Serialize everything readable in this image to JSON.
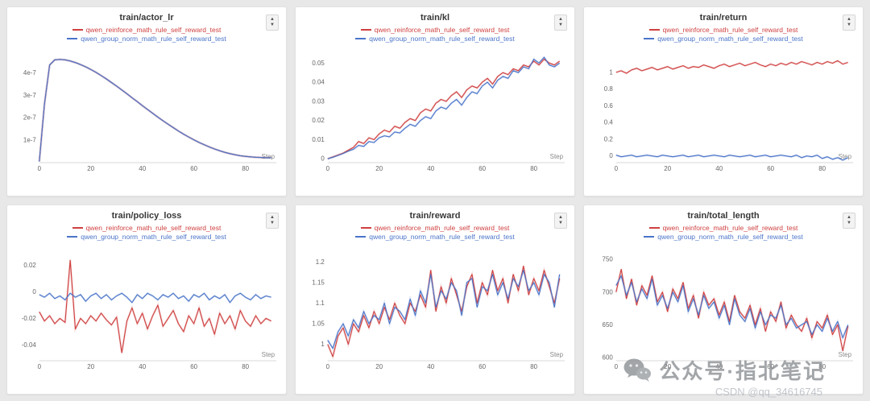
{
  "legend": {
    "series1": "qwen_reinforce_math_rule_self_reward_test",
    "series2": "qwen_group_norm_math_rule_self_reward_test",
    "color1": "#cf3f3f",
    "color2": "#4a74c9"
  },
  "icons": {
    "chevron_up": "▲",
    "chevron_down": "▼"
  },
  "watermark": {
    "wechat_text": "公众号·指北笔记",
    "csdn_text": "CSDN @qq_34616745"
  },
  "chart_data": [
    {
      "type": "line",
      "title": "train/actor_lr",
      "xlabel": "Step",
      "y_unit": "1e-7",
      "xlim": [
        0,
        92
      ],
      "xticks": [
        0,
        20,
        40,
        60,
        80
      ],
      "ylim": [
        0,
        4.95
      ],
      "ytick_values": [
        1,
        2,
        3,
        4
      ],
      "ytick_labels": [
        "1e-7",
        "2e-7",
        "3e-7",
        "4e-7"
      ],
      "x": [
        0,
        2,
        4,
        6,
        8,
        10,
        12,
        14,
        16,
        18,
        20,
        22,
        24,
        26,
        28,
        30,
        32,
        34,
        36,
        38,
        40,
        42,
        44,
        46,
        48,
        50,
        52,
        54,
        56,
        58,
        60,
        62,
        64,
        66,
        68,
        70,
        72,
        74,
        76,
        78,
        80,
        82,
        84,
        86,
        88,
        90
      ],
      "series": [
        {
          "name": "qwen_reinforce_math_rule_self_reward_test",
          "color": "#cf3f3f",
          "values": [
            0.05,
            2.6,
            4.35,
            4.58,
            4.6,
            4.58,
            4.53,
            4.46,
            4.37,
            4.27,
            4.15,
            4.02,
            3.88,
            3.73,
            3.57,
            3.41,
            3.24,
            3.07,
            2.89,
            2.72,
            2.54,
            2.37,
            2.2,
            2.03,
            1.87,
            1.71,
            1.56,
            1.41,
            1.27,
            1.14,
            1.02,
            0.9,
            0.8,
            0.7,
            0.61,
            0.53,
            0.46,
            0.4,
            0.35,
            0.31,
            0.28,
            0.26,
            0.24,
            0.23,
            0.22,
            0.22
          ]
        },
        {
          "name": "qwen_group_norm_math_rule_self_reward_test",
          "color": "#4a74c9",
          "values": [
            0.05,
            2.6,
            4.35,
            4.58,
            4.6,
            4.58,
            4.53,
            4.46,
            4.37,
            4.27,
            4.15,
            4.02,
            3.88,
            3.73,
            3.57,
            3.41,
            3.24,
            3.07,
            2.89,
            2.72,
            2.54,
            2.37,
            2.2,
            2.03,
            1.87,
            1.71,
            1.56,
            1.41,
            1.27,
            1.14,
            1.02,
            0.9,
            0.8,
            0.7,
            0.61,
            0.53,
            0.46,
            0.4,
            0.35,
            0.31,
            0.28,
            0.26,
            0.24,
            0.23,
            0.22,
            0.22
          ]
        }
      ]
    },
    {
      "type": "line",
      "title": "train/kl",
      "xlabel": "Step",
      "xlim": [
        0,
        92
      ],
      "xticks": [
        0,
        20,
        40,
        60,
        80
      ],
      "ylim": [
        -0.002,
        0.056
      ],
      "ytick_values": [
        0,
        0.01,
        0.02,
        0.03,
        0.04,
        0.05
      ],
      "ytick_labels": [
        "0",
        "0.01",
        "0.02",
        "0.03",
        "0.04",
        "0.05"
      ],
      "x": [
        0,
        2,
        4,
        6,
        8,
        10,
        12,
        14,
        16,
        18,
        20,
        22,
        24,
        26,
        28,
        30,
        32,
        34,
        36,
        38,
        40,
        42,
        44,
        46,
        48,
        50,
        52,
        54,
        56,
        58,
        60,
        62,
        64,
        66,
        68,
        70,
        72,
        74,
        76,
        78,
        80,
        82,
        84,
        86,
        88,
        90
      ],
      "series": [
        {
          "name": "qwen_reinforce_math_rule_self_reward_test",
          "color": "#cf3f3f",
          "values": [
            0,
            0.001,
            0.002,
            0.003,
            0.0045,
            0.006,
            0.009,
            0.008,
            0.011,
            0.01,
            0.013,
            0.015,
            0.014,
            0.017,
            0.016,
            0.019,
            0.021,
            0.02,
            0.024,
            0.026,
            0.025,
            0.029,
            0.031,
            0.03,
            0.033,
            0.035,
            0.032,
            0.036,
            0.038,
            0.037,
            0.04,
            0.042,
            0.039,
            0.043,
            0.045,
            0.044,
            0.047,
            0.046,
            0.049,
            0.048,
            0.051,
            0.049,
            0.052,
            0.05,
            0.049,
            0.051
          ]
        },
        {
          "name": "qwen_group_norm_math_rule_self_reward_test",
          "color": "#4a74c9",
          "values": [
            0,
            0.0008,
            0.0018,
            0.0028,
            0.004,
            0.005,
            0.007,
            0.0065,
            0.009,
            0.0085,
            0.011,
            0.012,
            0.0115,
            0.014,
            0.0135,
            0.016,
            0.018,
            0.017,
            0.02,
            0.022,
            0.021,
            0.025,
            0.027,
            0.026,
            0.029,
            0.031,
            0.028,
            0.032,
            0.035,
            0.034,
            0.038,
            0.04,
            0.037,
            0.041,
            0.043,
            0.042,
            0.046,
            0.045,
            0.048,
            0.047,
            0.052,
            0.05,
            0.053,
            0.049,
            0.048,
            0.05
          ]
        }
      ]
    },
    {
      "type": "line",
      "title": "train/return",
      "xlabel": "Step",
      "xlim": [
        0,
        92
      ],
      "xticks": [
        0,
        20,
        40,
        60,
        80
      ],
      "ylim": [
        -0.08,
        1.25
      ],
      "ytick_values": [
        0,
        0.2,
        0.4,
        0.6,
        0.8,
        1
      ],
      "ytick_labels": [
        "0",
        "0.2",
        "0.4",
        "0.6",
        "0.8",
        "1"
      ],
      "x": [
        0,
        2,
        4,
        6,
        8,
        10,
        12,
        14,
        16,
        18,
        20,
        22,
        24,
        26,
        28,
        30,
        32,
        34,
        36,
        38,
        40,
        42,
        44,
        46,
        48,
        50,
        52,
        54,
        56,
        58,
        60,
        62,
        64,
        66,
        68,
        70,
        72,
        74,
        76,
        78,
        80,
        82,
        84,
        86,
        88,
        90
      ],
      "series": [
        {
          "name": "qwen_reinforce_math_rule_self_reward_test",
          "color": "#cf3f3f",
          "values": [
            1.0,
            1.02,
            0.99,
            1.03,
            1.05,
            1.02,
            1.04,
            1.06,
            1.03,
            1.05,
            1.07,
            1.04,
            1.06,
            1.08,
            1.05,
            1.07,
            1.06,
            1.09,
            1.07,
            1.05,
            1.08,
            1.1,
            1.07,
            1.09,
            1.11,
            1.08,
            1.1,
            1.12,
            1.09,
            1.07,
            1.1,
            1.08,
            1.11,
            1.09,
            1.12,
            1.1,
            1.13,
            1.11,
            1.09,
            1.12,
            1.1,
            1.13,
            1.11,
            1.14,
            1.1,
            1.12
          ]
        },
        {
          "name": "qwen_group_norm_math_rule_self_reward_test",
          "color": "#4a74c9",
          "values": [
            0.01,
            -0.01,
            0,
            0.01,
            -0.01,
            0,
            0.01,
            0,
            -0.01,
            0.01,
            0,
            -0.01,
            0,
            0.01,
            -0.01,
            0,
            0.01,
            -0.01,
            0,
            0.01,
            0,
            -0.01,
            0.01,
            0,
            -0.01,
            0,
            0.01,
            -0.01,
            0,
            0.01,
            -0.01,
            0,
            0.01,
            0,
            -0.01,
            0.01,
            -0.02,
            0,
            -0.01,
            0.01,
            -0.03,
            -0.01,
            -0.04,
            -0.02,
            -0.05,
            -0.02
          ]
        }
      ]
    },
    {
      "type": "line",
      "title": "train/policy_loss",
      "xlabel": "Step",
      "xlim": [
        0,
        92
      ],
      "xticks": [
        0,
        20,
        40,
        60,
        80
      ],
      "ylim": [
        -0.052,
        0.032
      ],
      "ytick_values": [
        -0.04,
        -0.02,
        0,
        0.02
      ],
      "ytick_labels": [
        "-0.04",
        "-0.02",
        "0",
        "0.02"
      ],
      "x": [
        0,
        2,
        4,
        6,
        8,
        10,
        12,
        14,
        16,
        18,
        20,
        22,
        24,
        26,
        28,
        30,
        32,
        34,
        36,
        38,
        40,
        42,
        44,
        46,
        48,
        50,
        52,
        54,
        56,
        58,
        60,
        62,
        64,
        66,
        68,
        70,
        72,
        74,
        76,
        78,
        80,
        82,
        84,
        86,
        88,
        90
      ],
      "series": [
        {
          "name": "qwen_reinforce_math_rule_self_reward_test",
          "color": "#cf3f3f",
          "values": [
            -0.015,
            -0.022,
            -0.018,
            -0.024,
            -0.02,
            -0.023,
            0.024,
            -0.028,
            -0.02,
            -0.024,
            -0.018,
            -0.022,
            -0.016,
            -0.021,
            -0.025,
            -0.019,
            -0.046,
            -0.022,
            -0.012,
            -0.024,
            -0.016,
            -0.028,
            -0.018,
            -0.01,
            -0.026,
            -0.02,
            -0.014,
            -0.024,
            -0.03,
            -0.018,
            -0.024,
            -0.012,
            -0.026,
            -0.02,
            -0.032,
            -0.016,
            -0.024,
            -0.018,
            -0.028,
            -0.014,
            -0.022,
            -0.026,
            -0.018,
            -0.024,
            -0.02,
            -0.022
          ]
        },
        {
          "name": "qwen_group_norm_math_rule_self_reward_test",
          "color": "#4a74c9",
          "values": [
            -0.002,
            -0.004,
            -0.001,
            -0.005,
            -0.003,
            -0.006,
            -0.001,
            -0.004,
            -0.002,
            -0.007,
            -0.003,
            -0.001,
            -0.005,
            -0.002,
            -0.006,
            -0.003,
            -0.001,
            -0.004,
            -0.008,
            -0.002,
            -0.005,
            -0.001,
            -0.003,
            -0.006,
            -0.002,
            -0.004,
            -0.001,
            -0.005,
            -0.003,
            -0.007,
            -0.002,
            -0.004,
            -0.001,
            -0.006,
            -0.003,
            -0.005,
            -0.002,
            -0.008,
            -0.003,
            -0.001,
            -0.004,
            -0.006,
            -0.002,
            -0.005,
            -0.003,
            -0.004
          ]
        }
      ]
    },
    {
      "type": "line",
      "title": "train/reward",
      "xlabel": "Step",
      "xlim": [
        0,
        92
      ],
      "xticks": [
        0,
        20,
        40,
        60,
        80
      ],
      "ylim": [
        0.96,
        1.23
      ],
      "ytick_values": [
        1,
        1.05,
        1.1,
        1.15,
        1.2
      ],
      "ytick_labels": [
        "1",
        "1.05",
        "1.1",
        "1.15",
        "1.2"
      ],
      "x": [
        0,
        2,
        4,
        6,
        8,
        10,
        12,
        14,
        16,
        18,
        20,
        22,
        24,
        26,
        28,
        30,
        32,
        34,
        36,
        38,
        40,
        42,
        44,
        46,
        48,
        50,
        52,
        54,
        56,
        58,
        60,
        62,
        64,
        66,
        68,
        70,
        72,
        74,
        76,
        78,
        80,
        82,
        84,
        86,
        88,
        90
      ],
      "series": [
        {
          "name": "qwen_reinforce_math_rule_self_reward_test",
          "color": "#cf3f3f",
          "values": [
            1.0,
            0.97,
            1.02,
            1.04,
            1.0,
            1.05,
            1.03,
            1.07,
            1.04,
            1.08,
            1.05,
            1.09,
            1.06,
            1.1,
            1.07,
            1.05,
            1.1,
            1.08,
            1.12,
            1.09,
            1.18,
            1.08,
            1.14,
            1.1,
            1.16,
            1.12,
            1.08,
            1.14,
            1.17,
            1.1,
            1.15,
            1.12,
            1.18,
            1.13,
            1.16,
            1.1,
            1.17,
            1.13,
            1.19,
            1.12,
            1.16,
            1.13,
            1.18,
            1.14,
            1.1,
            1.16
          ]
        },
        {
          "name": "qwen_group_norm_math_rule_self_reward_test",
          "color": "#4a74c9",
          "values": [
            1.01,
            0.99,
            1.03,
            1.05,
            1.02,
            1.06,
            1.04,
            1.08,
            1.05,
            1.07,
            1.06,
            1.1,
            1.05,
            1.09,
            1.08,
            1.06,
            1.11,
            1.07,
            1.13,
            1.1,
            1.17,
            1.09,
            1.13,
            1.11,
            1.15,
            1.13,
            1.07,
            1.15,
            1.16,
            1.09,
            1.14,
            1.13,
            1.17,
            1.12,
            1.15,
            1.11,
            1.16,
            1.14,
            1.18,
            1.13,
            1.15,
            1.12,
            1.17,
            1.15,
            1.09,
            1.17
          ]
        }
      ]
    },
    {
      "type": "line",
      "title": "train/total_length",
      "xlabel": "Step",
      "xlim": [
        0,
        92
      ],
      "xticks": [
        0,
        20,
        40,
        60,
        80
      ],
      "ylim": [
        595,
        765
      ],
      "ytick_values": [
        600,
        650,
        700,
        750
      ],
      "ytick_labels": [
        "600",
        "650",
        "700",
        "750"
      ],
      "x": [
        0,
        2,
        4,
        6,
        8,
        10,
        12,
        14,
        16,
        18,
        20,
        22,
        24,
        26,
        28,
        30,
        32,
        34,
        36,
        38,
        40,
        42,
        44,
        46,
        48,
        50,
        52,
        54,
        56,
        58,
        60,
        62,
        64,
        66,
        68,
        70,
        72,
        74,
        76,
        78,
        80,
        82,
        84,
        86,
        88,
        90
      ],
      "series": [
        {
          "name": "qwen_reinforce_math_rule_self_reward_test",
          "color": "#cf3f3f",
          "values": [
            700,
            735,
            690,
            720,
            680,
            710,
            695,
            725,
            685,
            700,
            670,
            705,
            690,
            715,
            675,
            695,
            660,
            700,
            680,
            690,
            665,
            685,
            655,
            695,
            670,
            660,
            680,
            650,
            675,
            640,
            670,
            655,
            685,
            645,
            665,
            650,
            640,
            660,
            630,
            655,
            645,
            665,
            635,
            650,
            610,
            648
          ]
        },
        {
          "name": "qwen_group_norm_math_rule_self_reward_test",
          "color": "#4a74c9",
          "values": [
            710,
            725,
            695,
            715,
            685,
            705,
            690,
            720,
            680,
            695,
            675,
            700,
            685,
            710,
            670,
            690,
            665,
            695,
            675,
            685,
            660,
            680,
            650,
            690,
            665,
            655,
            675,
            645,
            670,
            650,
            665,
            660,
            680,
            650,
            660,
            645,
            650,
            655,
            635,
            650,
            640,
            660,
            640,
            655,
            630,
            650
          ]
        }
      ]
    }
  ]
}
